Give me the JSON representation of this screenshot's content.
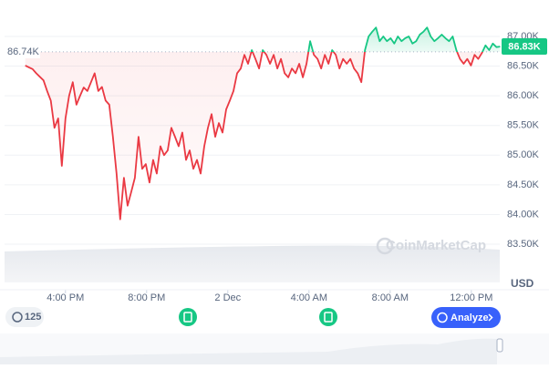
{
  "chart_data": {
    "type": "line",
    "unit": "USD",
    "watermark": "CoinMarketCap",
    "reference": {
      "value": 86740,
      "label": "86.74K"
    },
    "current": {
      "value": 86830,
      "label": "86.83K"
    },
    "events_count": "125",
    "analyze_button": "Analyze",
    "up_color": "#16c784",
    "down_color": "#ea3943",
    "xlim": [
      13,
      37.4
    ],
    "xticks": [
      {
        "value": 16,
        "label": "4:00 PM"
      },
      {
        "value": 20,
        "label": "8:00 PM"
      },
      {
        "value": 24,
        "label": "2 Dec"
      },
      {
        "value": 28,
        "label": "4:00 AM"
      },
      {
        "value": 32,
        "label": "8:00 AM"
      },
      {
        "value": 36,
        "label": "12:00 PM"
      }
    ],
    "ylim": [
      83240,
      87460
    ],
    "yticks": [
      {
        "value": 83500,
        "label": "83.50K"
      },
      {
        "value": 84000,
        "label": "84.00K"
      },
      {
        "value": 84500,
        "label": "84.50K"
      },
      {
        "value": 85000,
        "label": "85.00K"
      },
      {
        "value": 85500,
        "label": "85.50K"
      },
      {
        "value": 86000,
        "label": "86.00K"
      },
      {
        "value": 86500,
        "label": "86.50K"
      },
      {
        "value": 87000,
        "label": "87.00K"
      }
    ],
    "grid": true,
    "x": [
      14.02,
      14.2,
      14.38,
      14.56,
      14.74,
      14.92,
      15.1,
      15.28,
      15.46,
      15.64,
      15.82,
      16,
      16.18,
      16.36,
      16.54,
      16.72,
      16.9,
      17.08,
      17.26,
      17.44,
      17.62,
      17.8,
      17.98,
      18.16,
      18.34,
      18.52,
      18.7,
      18.88,
      19.06,
      19.24,
      19.42,
      19.6,
      19.78,
      19.96,
      20.14,
      20.32,
      20.5,
      20.68,
      20.86,
      21.04,
      21.22,
      21.4,
      21.58,
      21.76,
      21.94,
      22.12,
      22.3,
      22.48,
      22.66,
      22.84,
      23.02,
      23.2,
      23.38,
      23.56,
      23.74,
      23.92,
      24.1,
      24.28,
      24.46,
      24.64,
      24.82,
      25,
      25.18,
      25.36,
      25.54,
      25.72,
      25.9,
      26.08,
      26.26,
      26.44,
      26.62,
      26.8,
      26.98,
      27.16,
      27.34,
      27.52,
      27.7,
      27.88,
      28.06,
      28.24,
      28.42,
      28.6,
      28.78,
      28.96,
      29.14,
      29.32,
      29.5,
      29.68,
      29.86,
      30.04,
      30.22,
      30.4,
      30.58,
      30.76,
      30.94,
      31.12,
      31.3,
      31.48,
      31.66,
      31.84,
      32.02,
      32.2,
      32.38,
      32.56,
      32.74,
      32.92,
      33.1,
      33.28,
      33.46,
      33.64,
      33.82,
      34,
      34.18,
      34.36,
      34.54,
      34.72,
      34.9,
      35.08,
      35.26,
      35.44,
      35.62,
      35.8,
      35.98,
      36.16,
      36.34,
      36.52,
      36.7,
      36.88,
      37.06,
      37.24,
      37.42
    ],
    "values": [
      86510,
      86480,
      86450,
      86380,
      86320,
      86260,
      86080,
      85920,
      85460,
      85620,
      84820,
      85620,
      86000,
      86230,
      85850,
      86000,
      86140,
      86080,
      86230,
      86380,
      86080,
      86150,
      85920,
      85850,
      85310,
      84690,
      83920,
      84620,
      84150,
      84380,
      84620,
      85310,
      84770,
      84850,
      84540,
      84920,
      84690,
      85150,
      85000,
      85080,
      85460,
      85310,
      85150,
      85380,
      84920,
      85080,
      84770,
      84920,
      84690,
      85150,
      85460,
      85690,
      85310,
      85540,
      85380,
      85770,
      85920,
      86080,
      86380,
      86460,
      86690,
      86540,
      86770,
      86620,
      86460,
      86770,
      86690,
      86540,
      86690,
      86460,
      86620,
      86380,
      86310,
      86460,
      86380,
      86540,
      86310,
      86540,
      86920,
      86690,
      86620,
      86460,
      86690,
      86540,
      86770,
      86690,
      86460,
      86620,
      86540,
      86620,
      86460,
      86380,
      86230,
      86770,
      87000,
      87080,
      87150,
      86920,
      87000,
      86920,
      86970,
      86880,
      87000,
      86920,
      86970,
      87000,
      86880,
      86920,
      87030,
      87080,
      87150,
      87000,
      86920,
      86970,
      87030,
      86970,
      86920,
      87000,
      86770,
      86620,
      86540,
      86620,
      86510,
      86690,
      86620,
      86720,
      86850,
      86770,
      86880,
      86820,
      86830
    ]
  }
}
